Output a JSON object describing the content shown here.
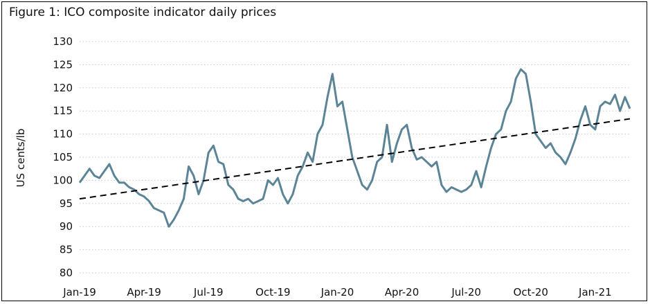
{
  "chart_data": {
    "type": "line",
    "title": "Figure 1: ICO composite indicator daily prices",
    "y_label": "US cents/lb",
    "categories": [
      "Jan-19",
      null,
      null,
      null,
      null,
      null,
      null,
      null,
      null,
      null,
      null,
      null,
      null,
      "Apr-19",
      null,
      null,
      null,
      null,
      null,
      null,
      null,
      null,
      null,
      null,
      null,
      null,
      "Jul-19",
      null,
      null,
      null,
      null,
      null,
      null,
      null,
      null,
      null,
      null,
      null,
      null,
      "Oct-19",
      null,
      null,
      null,
      null,
      null,
      null,
      null,
      null,
      null,
      null,
      null,
      null,
      "Jan-20",
      null,
      null,
      null,
      null,
      null,
      null,
      null,
      null,
      null,
      null,
      null,
      null,
      "Apr-20",
      null,
      null,
      null,
      null,
      null,
      null,
      null,
      null,
      null,
      null,
      null,
      null,
      "Jul-20",
      null,
      null,
      null,
      null,
      null,
      null,
      null,
      null,
      null,
      null,
      null,
      null,
      "Oct-20",
      null,
      null,
      null,
      null,
      null,
      null,
      null,
      null,
      null,
      null,
      null,
      null,
      "Jan-21",
      null,
      null,
      null,
      null,
      null,
      null,
      null
    ],
    "series": [
      {
        "color": "#5b8497",
        "values": [
          99.5,
          101,
          102.5,
          101,
          100.5,
          102,
          103.5,
          101,
          99.5,
          99.5,
          98.5,
          98,
          97,
          96.5,
          95.5,
          94,
          93.5,
          93,
          90,
          91.5,
          93.5,
          96,
          103,
          101,
          97,
          100,
          106,
          107.5,
          104,
          103.5,
          99,
          98,
          96,
          95.5,
          96,
          95,
          95.5,
          96,
          100,
          99,
          100.5,
          97,
          95,
          97,
          101,
          103,
          106,
          104,
          110,
          112,
          118,
          123,
          116,
          117,
          111,
          105,
          102,
          99,
          98,
          100,
          104,
          105,
          112,
          104,
          108,
          111,
          112,
          107,
          104.5,
          105,
          104,
          103,
          104,
          99,
          97.5,
          98.5,
          98,
          97.5,
          98,
          99,
          102,
          98.5,
          103,
          107,
          110,
          111,
          115,
          117,
          122,
          124,
          123,
          117,
          110,
          108.5,
          107,
          108,
          106,
          105,
          103.5,
          106,
          109,
          113,
          116,
          112,
          111,
          116,
          117,
          116.5,
          118.5,
          115,
          118,
          115.5
        ]
      }
    ],
    "trendline": {
      "color": "#000000",
      "values": [
        96,
        113.3
      ]
    },
    "ylim": [
      80,
      130
    ],
    "yticks": [
      80,
      85,
      90,
      95,
      100,
      105,
      110,
      115,
      120,
      125,
      130
    ],
    "grid": true
  }
}
